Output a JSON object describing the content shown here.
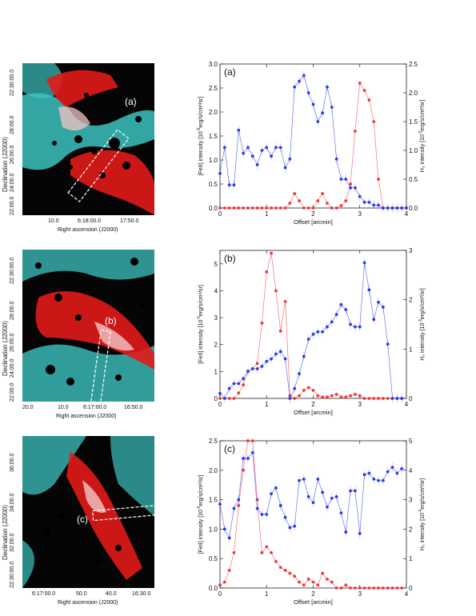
{
  "images": [
    {
      "panel_label": "(a)",
      "ylabel": "Declination (J2000)",
      "xlabel": "Right ascension (J2000)",
      "yticks": [
        "22:30:00.0",
        "28:00.0",
        "26:00.0",
        "24:00.0",
        "22:00.0"
      ],
      "xticks": [
        "10.0",
        "6:18:00.0",
        "17:50.0"
      ]
    },
    {
      "panel_label": "(b)",
      "ylabel": "Declination (J2000)",
      "xlabel": "Right ascension (J2000)",
      "yticks": [
        "22:30:00.0",
        "28:00.0",
        "26:00.0",
        "24:00.0",
        "22:00.0"
      ],
      "xticks": [
        "20.0",
        "10.0",
        "6:17:00.0",
        "16:50.0"
      ]
    },
    {
      "panel_label": "(c)",
      "ylabel": "Declination (J2000)",
      "xlabel": "Right ascension (J2000)",
      "yticks": [
        "36:00.0",
        "34:00.0",
        "32:00.0",
        "22:30:00.0"
      ],
      "xticks": [
        "6:17:00.0",
        "50.0",
        "40.0",
        "16:30.0"
      ]
    }
  ],
  "colors": {
    "feii": "#f0383a",
    "h2": "#2b3de0",
    "cyan": "#3cc3c0",
    "red": "#e21a1a"
  },
  "chart_data": [
    {
      "type": "line",
      "panel_label": "(a)",
      "xlabel": "Offset [arcmin]",
      "ylabel_left_main": "[FeII] intensity [10",
      "ylabel_left_exp": "-5",
      "ylabel_left_tail": "erg/s/cm²/sr]",
      "ylabel_right_main": "H₂ intensity [10",
      "ylabel_right_exp": "-3",
      "ylabel_right_tail": "erg/s/cm²/sr]",
      "xlim": [
        0,
        4
      ],
      "xticks": [
        0,
        1,
        2,
        3,
        4
      ],
      "xtick_labels": [
        "0",
        "1",
        "2",
        "3",
        "4"
      ],
      "ylim_left": [
        0,
        3.0
      ],
      "yticks_left": [
        0.0,
        0.5,
        1.0,
        1.5,
        2.0,
        2.5,
        3.0
      ],
      "ytick_labels_left": [
        "0.0",
        "0.5",
        "1.0",
        "1.5",
        "2.0",
        "2.5",
        "3.0"
      ],
      "ylim_right": [
        0,
        2.5
      ],
      "yticks_right": [
        0.0,
        0.5,
        1.0,
        1.5,
        2.0,
        2.5
      ],
      "ytick_labels_right": [
        "0.0",
        "0.5",
        "1.0",
        "1.5",
        "2.0",
        "2.5"
      ],
      "series": [
        {
          "axis": "left",
          "x": [
            0.0,
            0.1,
            0.2,
            0.3,
            0.4,
            0.5,
            0.6,
            0.7,
            0.8,
            0.9,
            1.0,
            1.1,
            1.2,
            1.3,
            1.4,
            1.5,
            1.6,
            1.7,
            1.8,
            1.9,
            2.0,
            2.1,
            2.2,
            2.3,
            2.4,
            2.5,
            2.6,
            2.7,
            2.8,
            2.9,
            3.0,
            3.1,
            3.2,
            3.3,
            3.4,
            3.5,
            3.6,
            3.7,
            3.8,
            3.9,
            4.0
          ],
          "y": [
            0.0,
            0.0,
            0.0,
            0.0,
            0.0,
            0.0,
            0.0,
            0.0,
            0.0,
            0.0,
            0.0,
            0.0,
            0.0,
            0.0,
            0.0,
            0.1,
            0.3,
            0.15,
            0.0,
            0.0,
            0.0,
            0.15,
            0.3,
            0.1,
            0.0,
            0.0,
            0.05,
            0.15,
            0.5,
            1.6,
            2.6,
            2.45,
            2.25,
            1.8,
            0.6,
            0.0,
            0.0,
            0.0,
            0.0,
            0.0,
            0.0
          ]
        },
        {
          "axis": "right",
          "x": [
            0.0,
            0.1,
            0.2,
            0.3,
            0.4,
            0.5,
            0.6,
            0.7,
            0.8,
            0.9,
            1.0,
            1.1,
            1.2,
            1.3,
            1.4,
            1.5,
            1.6,
            1.7,
            1.8,
            1.9,
            2.0,
            2.1,
            2.2,
            2.3,
            2.4,
            2.5,
            2.6,
            2.7,
            2.8,
            2.9,
            3.0,
            3.1,
            3.2,
            3.3,
            3.4,
            3.5,
            3.6,
            3.7,
            3.8,
            3.9,
            4.0
          ],
          "y": [
            0.6,
            1.05,
            0.4,
            0.4,
            1.35,
            0.95,
            1.05,
            0.9,
            0.75,
            1.0,
            1.05,
            0.9,
            1.05,
            1.05,
            0.7,
            0.85,
            2.1,
            2.2,
            2.3,
            2.0,
            1.8,
            1.5,
            1.65,
            2.1,
            1.75,
            0.85,
            0.5,
            0.5,
            0.35,
            0.35,
            0.2,
            0.1,
            0.1,
            0.05,
            0.05,
            0.0,
            0.0,
            0.0,
            0.0,
            0.0,
            0.0
          ]
        }
      ]
    },
    {
      "type": "line",
      "panel_label": "(b)",
      "xlabel": "Offset [arcmin]",
      "ylabel_left_main": "[FeII] intensity [10",
      "ylabel_left_exp": "-5",
      "ylabel_left_tail": "erg/s/cm²/sr]",
      "ylabel_right_main": "H₂ intensity [10",
      "ylabel_right_exp": "-3",
      "ylabel_right_tail": "erg/s/cm²/sr]",
      "xlim": [
        0,
        4
      ],
      "xticks": [
        0,
        1,
        2,
        3,
        4
      ],
      "xtick_labels": [
        "0",
        "1",
        "2",
        "3",
        "4"
      ],
      "ylim_left": [
        0,
        5.5
      ],
      "yticks_left": [
        0,
        1,
        2,
        3,
        4,
        5
      ],
      "ytick_labels_left": [
        "0",
        "1",
        "2",
        "3",
        "4",
        "5"
      ],
      "ylim_right": [
        0,
        3
      ],
      "yticks_right": [
        0,
        1,
        2,
        3
      ],
      "ytick_labels_right": [
        "0",
        "1",
        "2",
        "3"
      ],
      "series": [
        {
          "axis": "left",
          "x": [
            0.0,
            0.1,
            0.2,
            0.3,
            0.4,
            0.5,
            0.6,
            0.7,
            0.8,
            0.9,
            1.0,
            1.1,
            1.2,
            1.3,
            1.4,
            1.5,
            1.6,
            1.7,
            1.8,
            1.9,
            2.0,
            2.1,
            2.2,
            2.3,
            2.4,
            2.5,
            2.6,
            2.7,
            2.8,
            2.9,
            3.0,
            3.1,
            3.2,
            3.3,
            3.4,
            3.5,
            3.6,
            3.7,
            3.8,
            3.9
          ],
          "y": [
            0.0,
            0.0,
            0.0,
            0.0,
            0.2,
            0.5,
            1.0,
            1.1,
            1.3,
            2.8,
            4.7,
            5.4,
            4.0,
            2.5,
            3.6,
            0.1,
            0.0,
            0.1,
            0.3,
            0.4,
            0.3,
            0.1,
            0.05,
            0.05,
            0.1,
            0.15,
            0.05,
            0.05,
            0.1,
            0.15,
            0.1,
            0.0,
            0.0,
            0.0,
            0.0,
            0.0,
            0.0,
            0.0,
            0.0,
            0.0
          ]
        },
        {
          "axis": "right",
          "x": [
            0.0,
            0.1,
            0.2,
            0.3,
            0.4,
            0.5,
            0.6,
            0.7,
            0.8,
            0.9,
            1.0,
            1.1,
            1.2,
            1.3,
            1.4,
            1.5,
            1.6,
            1.7,
            1.8,
            1.9,
            2.0,
            2.1,
            2.2,
            2.3,
            2.4,
            2.5,
            2.6,
            2.7,
            2.8,
            2.9,
            3.0,
            3.1,
            3.2,
            3.3,
            3.4,
            3.5,
            3.6,
            3.7,
            3.8,
            3.9
          ],
          "y": [
            0.1,
            0.0,
            0.2,
            0.3,
            0.3,
            0.4,
            0.55,
            0.6,
            0.6,
            0.65,
            0.75,
            0.8,
            0.9,
            0.95,
            0.8,
            0.0,
            0.2,
            0.5,
            0.85,
            1.2,
            1.3,
            1.35,
            1.35,
            1.45,
            1.55,
            1.7,
            1.9,
            1.8,
            1.5,
            1.45,
            1.45,
            2.75,
            2.2,
            1.6,
            1.95,
            1.85,
            1.1,
            0.0,
            0.0,
            0.0
          ]
        }
      ]
    },
    {
      "type": "line",
      "panel_label": "(c)",
      "xlabel": "Offset [arcmin]",
      "ylabel_left_main": "[FeII] intensity [10",
      "ylabel_left_exp": "-5",
      "ylabel_left_tail": "erg/s/cm²/sr]",
      "ylabel_right_main": "H₂ intensity [10",
      "ylabel_right_exp": "-4",
      "ylabel_right_tail": "erg/s/cm²/sr]",
      "xlim": [
        0,
        4
      ],
      "xticks": [
        0,
        1,
        2,
        3,
        4
      ],
      "xtick_labels": [
        "0",
        "1",
        "2",
        "3",
        "4"
      ],
      "ylim_left": [
        0,
        2.5
      ],
      "yticks_left": [
        0.0,
        0.5,
        1.0,
        1.5,
        2.0,
        2.5
      ],
      "ytick_labels_left": [
        "0.0",
        "0.5",
        "1.0",
        "1.5",
        "2.0",
        "2.5"
      ],
      "ylim_right": [
        0,
        5
      ],
      "yticks_right": [
        0,
        1,
        2,
        3,
        4,
        5
      ],
      "ytick_labels_right": [
        "0",
        "1",
        "2",
        "3",
        "4",
        "5"
      ],
      "series": [
        {
          "axis": "left",
          "x": [
            0.0,
            0.1,
            0.2,
            0.3,
            0.4,
            0.5,
            0.6,
            0.7,
            0.8,
            0.9,
            1.0,
            1.1,
            1.2,
            1.3,
            1.4,
            1.5,
            1.6,
            1.7,
            1.8,
            1.9,
            2.0,
            2.1,
            2.2,
            2.3,
            2.4,
            2.5,
            2.6,
            2.7,
            2.8,
            2.9,
            3.0,
            3.1,
            3.2,
            3.3,
            3.4,
            3.5,
            3.6,
            3.7,
            3.8,
            3.9
          ],
          "y": [
            0.05,
            0.1,
            0.3,
            0.6,
            1.4,
            2.0,
            2.5,
            2.5,
            1.5,
            0.6,
            0.7,
            0.6,
            0.45,
            0.35,
            0.3,
            0.25,
            0.2,
            0.1,
            0.05,
            0.15,
            0.1,
            0.05,
            0.25,
            0.15,
            0.1,
            0.0,
            0.0,
            0.05,
            0.0,
            0.0,
            0.0,
            0.0,
            0.0,
            0.0,
            0.0,
            0.0,
            0.0,
            0.0,
            0.0,
            0.0
          ]
        },
        {
          "axis": "right",
          "x": [
            0.0,
            0.1,
            0.2,
            0.3,
            0.4,
            0.5,
            0.6,
            0.7,
            0.8,
            0.9,
            1.0,
            1.1,
            1.2,
            1.3,
            1.4,
            1.5,
            1.6,
            1.7,
            1.8,
            1.9,
            2.0,
            2.1,
            2.2,
            2.3,
            2.4,
            2.5,
            2.6,
            2.7,
            2.8,
            2.9,
            3.0,
            3.1,
            3.2,
            3.3,
            3.4,
            3.5,
            3.6,
            3.7,
            3.8,
            3.9
          ],
          "y": [
            2.85,
            2.0,
            1.7,
            2.7,
            3.0,
            4.4,
            4.4,
            4.6,
            2.7,
            2.5,
            2.5,
            3.2,
            3.4,
            2.8,
            2.4,
            2.05,
            2.1,
            3.65,
            3.7,
            3.1,
            2.9,
            3.7,
            3.25,
            2.75,
            3.05,
            3.1,
            2.55,
            1.9,
            3.3,
            3.3,
            1.85,
            3.85,
            3.9,
            3.7,
            3.65,
            3.65,
            3.95,
            4.1,
            3.9,
            4.05
          ]
        }
      ]
    }
  ]
}
